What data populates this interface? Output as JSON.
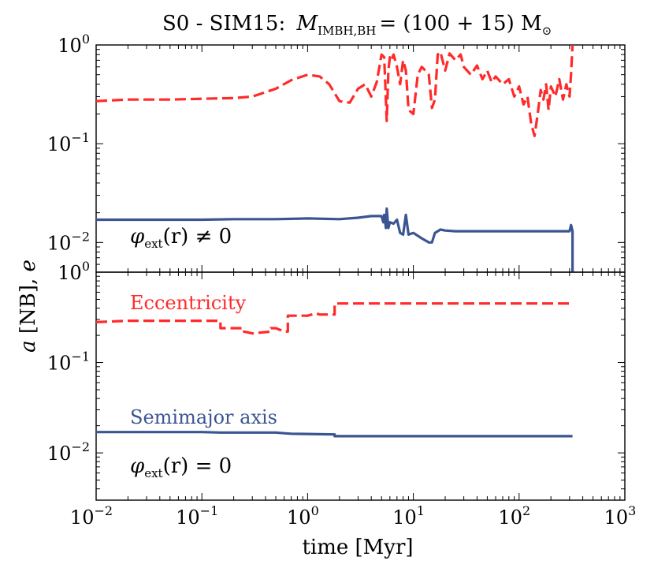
{
  "title": "S0 - SIM15:",
  "title_math": {
    "symbol": "M",
    "subscript": "IMBH,BH",
    "expression": "= (100 + 15) M",
    "sun_symbol": "⊙"
  },
  "colors": {
    "eccentricity": "#ff2a2a",
    "semimajor": "#3b5593",
    "axes": "#000000"
  },
  "chart_data": [
    {
      "type": "line",
      "panel": "top",
      "annotation": {
        "phi": "φ",
        "ext": "ext",
        "expr": "(r) ≠ 0"
      },
      "xscale": "log",
      "yscale": "log",
      "xlim": [
        0.01,
        1000
      ],
      "ylim": [
        0.005,
        1
      ],
      "ytick_labels": [
        {
          "base": "10",
          "exp": "0",
          "value": 1
        },
        {
          "base": "10",
          "exp": "−1",
          "value": 0.1
        },
        {
          "base": "10",
          "exp": "−2",
          "value": 0.01
        }
      ],
      "series": [
        {
          "name": "Eccentricity",
          "style": "dashed",
          "x": [
            0.01,
            0.02,
            0.05,
            0.1,
            0.2,
            0.3,
            0.5,
            0.7,
            1.0,
            1.3,
            1.6,
            2.0,
            2.5,
            3.0,
            3.5,
            4.0,
            4.5,
            5.0,
            5.3,
            5.6,
            5.8,
            6.0,
            6.2,
            6.5,
            7.0,
            7.5,
            8.0,
            8.5,
            9.0,
            10,
            11,
            12,
            13,
            14,
            15,
            16,
            17,
            18,
            20,
            22,
            25,
            28,
            30,
            35,
            40,
            45,
            50,
            55,
            60,
            70,
            80,
            90,
            100,
            110,
            120,
            130,
            140,
            150,
            160,
            170,
            180,
            190,
            200,
            220,
            240,
            260,
            280,
            300,
            310,
            320
          ],
          "values": [
            0.27,
            0.28,
            0.28,
            0.285,
            0.29,
            0.3,
            0.36,
            0.44,
            0.5,
            0.48,
            0.4,
            0.27,
            0.26,
            0.36,
            0.4,
            0.3,
            0.42,
            0.8,
            0.75,
            0.17,
            0.55,
            0.75,
            0.7,
            0.8,
            0.6,
            0.4,
            0.7,
            0.55,
            0.22,
            0.2,
            0.5,
            0.6,
            0.55,
            0.5,
            0.23,
            0.28,
            0.8,
            0.85,
            0.55,
            0.82,
            0.7,
            0.8,
            0.6,
            0.5,
            0.62,
            0.45,
            0.55,
            0.42,
            0.48,
            0.4,
            0.45,
            0.3,
            0.38,
            0.25,
            0.3,
            0.16,
            0.12,
            0.2,
            0.35,
            0.28,
            0.4,
            0.22,
            0.38,
            0.3,
            0.45,
            0.28,
            0.4,
            0.3,
            0.5,
            1.0
          ]
        },
        {
          "name": "Semimajor axis",
          "style": "solid",
          "x": [
            0.01,
            0.1,
            0.2,
            0.5,
            1.0,
            2.0,
            3.0,
            4.0,
            5.0,
            5.2,
            5.3,
            5.5,
            5.6,
            5.8,
            6.0,
            6.5,
            7.0,
            7.5,
            8.0,
            8.5,
            9.0,
            10,
            12,
            14,
            15,
            16,
            17,
            18,
            20,
            25,
            30,
            50,
            100,
            200,
            300,
            310,
            320,
            320
          ],
          "values": [
            0.017,
            0.017,
            0.0172,
            0.0172,
            0.0175,
            0.0172,
            0.0178,
            0.0185,
            0.0185,
            0.016,
            0.019,
            0.014,
            0.022,
            0.014,
            0.016,
            0.0155,
            0.017,
            0.0125,
            0.012,
            0.019,
            0.012,
            0.0125,
            0.011,
            0.01,
            0.01,
            0.0125,
            0.013,
            0.0135,
            0.0132,
            0.013,
            0.013,
            0.013,
            0.013,
            0.013,
            0.013,
            0.015,
            0.013,
            0.005
          ]
        }
      ]
    },
    {
      "type": "line",
      "panel": "bottom",
      "annotation": {
        "phi": "φ",
        "ext": "ext",
        "expr": "(r) = 0"
      },
      "xscale": "log",
      "yscale": "log",
      "xlim": [
        0.01,
        1000
      ],
      "ylim": [
        0.003,
        1
      ],
      "xlabel": "time [Myr]",
      "ylabel": {
        "a": "a",
        "unit": "[NB],",
        "e": "e"
      },
      "ytick_labels": [
        {
          "base": "10",
          "exp": "0",
          "value": 1
        },
        {
          "base": "10",
          "exp": "−1",
          "value": 0.1
        },
        {
          "base": "10",
          "exp": "−2",
          "value": 0.01
        }
      ],
      "xtick_labels": [
        {
          "base": "10",
          "exp": "−2",
          "value": 0.01
        },
        {
          "base": "10",
          "exp": "−1",
          "value": 0.1
        },
        {
          "base": "10",
          "exp": "0",
          "value": 1
        },
        {
          "base": "10",
          "exp": "1",
          "value": 10
        },
        {
          "base": "10",
          "exp": "2",
          "value": 100
        },
        {
          "base": "10",
          "exp": "3",
          "value": 1000
        }
      ],
      "series": [
        {
          "name": "Eccentricity",
          "label": "Eccentricity",
          "style": "dashed",
          "x": [
            0.01,
            0.02,
            0.05,
            0.1,
            0.15,
            0.15,
            0.2,
            0.25,
            0.25,
            0.3,
            0.45,
            0.45,
            0.5,
            0.6,
            0.65,
            0.65,
            0.7,
            1.0,
            1.2,
            1.3,
            1.5,
            1.8,
            1.8,
            2.0,
            5,
            10,
            50,
            100,
            200,
            320
          ],
          "values": [
            0.28,
            0.29,
            0.29,
            0.29,
            0.29,
            0.24,
            0.24,
            0.24,
            0.22,
            0.21,
            0.22,
            0.24,
            0.24,
            0.22,
            0.22,
            0.33,
            0.33,
            0.33,
            0.35,
            0.34,
            0.34,
            0.34,
            0.45,
            0.45,
            0.45,
            0.45,
            0.45,
            0.45,
            0.45,
            0.45
          ]
        },
        {
          "name": "Semimajor axis",
          "label": "Semimajor axis",
          "style": "solid",
          "x": [
            0.01,
            0.1,
            0.15,
            0.2,
            0.5,
            0.6,
            0.7,
            1.0,
            1.8,
            1.8,
            5,
            10,
            50,
            100,
            320
          ],
          "values": [
            0.017,
            0.017,
            0.0168,
            0.0168,
            0.0168,
            0.0165,
            0.0163,
            0.0162,
            0.016,
            0.0153,
            0.0153,
            0.0153,
            0.0153,
            0.0153,
            0.0153
          ]
        }
      ]
    }
  ]
}
